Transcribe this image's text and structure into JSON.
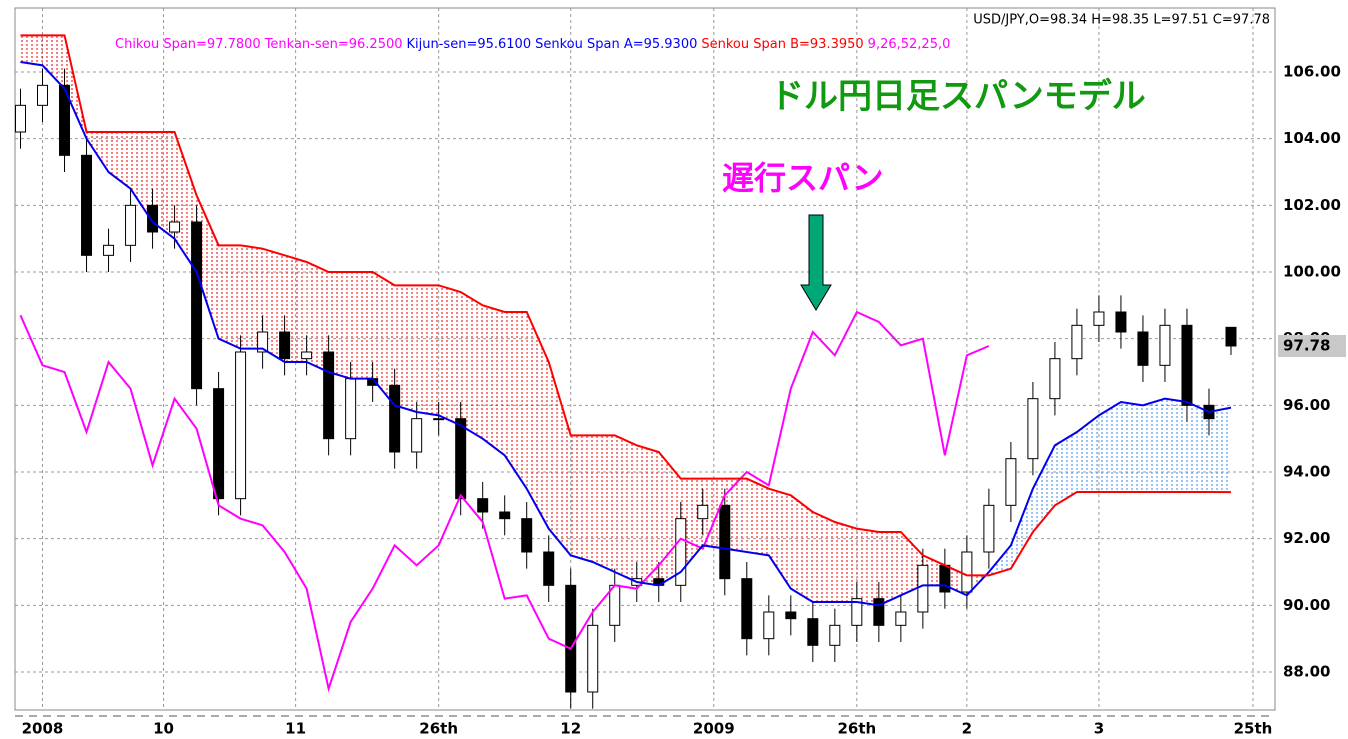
{
  "chart_data": {
    "type": "candlestick",
    "title": "USD/JPY,O=98.34 H=98.35 L=97.51 C=97.78",
    "legend": [
      {
        "label": "Chikou Span=97.7800",
        "color": "#ff00ff"
      },
      {
        "label": "Tenkan-sen=96.2500",
        "color": "#ff00ff"
      },
      {
        "label": "Kijun-sen=95.6100",
        "color": "#0000ff"
      },
      {
        "label": "Senkou Span A=95.9300",
        "color": "#0000ff"
      },
      {
        "label": "Senkou Span B=93.3950",
        "color": "#ff0000"
      },
      {
        "label": "9,26,52,25,0",
        "color": "#ff00ff"
      }
    ],
    "annotations": [
      {
        "text": "ドル円日足スパンモデル",
        "color": "#119911"
      },
      {
        "text": "遅行スパン",
        "color": "#ff00ff"
      }
    ],
    "price_tag": 97.78,
    "x": [
      0,
      1,
      2,
      3,
      4,
      5,
      6,
      7,
      8,
      9,
      10,
      11,
      12,
      13,
      14,
      15,
      16,
      17,
      18,
      19,
      20,
      21,
      22,
      23,
      24,
      25,
      26,
      27,
      28,
      29,
      30,
      31,
      32,
      33,
      34,
      35,
      36,
      37,
      38,
      39,
      40,
      41,
      42,
      43,
      44,
      45,
      46,
      47,
      48,
      49,
      50,
      51,
      52,
      53,
      54,
      55
    ],
    "open": [
      104.2,
      105.0,
      105.6,
      103.5,
      100.5,
      100.8,
      102.0,
      101.2,
      101.5,
      96.5,
      93.2,
      97.6,
      98.2,
      97.4,
      97.6,
      95.0,
      96.8,
      96.6,
      94.6,
      95.6,
      95.6,
      93.2,
      92.8,
      92.6,
      91.6,
      90.6,
      87.4,
      89.4,
      90.6,
      90.8,
      90.6,
      92.6,
      93.0,
      90.8,
      89.0,
      89.8,
      89.6,
      88.8,
      89.4,
      90.2,
      89.4,
      89.8,
      91.2,
      90.4,
      91.6,
      93.0,
      94.4,
      96.2,
      97.4,
      98.4,
      98.8,
      98.2,
      97.2,
      98.4,
      96.0,
      98.34
    ],
    "high": [
      105.5,
      106.1,
      106.1,
      104.0,
      101.3,
      102.5,
      102.5,
      102.0,
      102.0,
      97.0,
      98.1,
      98.7,
      98.7,
      98.1,
      98.1,
      97.3,
      97.3,
      97.1,
      96.1,
      96.1,
      96.1,
      93.7,
      93.3,
      93.1,
      92.1,
      91.1,
      89.9,
      91.1,
      91.3,
      91.3,
      93.1,
      93.5,
      93.5,
      91.3,
      90.3,
      90.3,
      90.1,
      89.9,
      90.7,
      90.7,
      90.3,
      91.7,
      91.7,
      92.1,
      93.5,
      94.9,
      96.7,
      97.9,
      98.9,
      99.3,
      99.3,
      98.7,
      98.9,
      98.9,
      96.5,
      98.35
    ],
    "low": [
      103.7,
      104.5,
      103.0,
      100.0,
      100.0,
      100.3,
      100.7,
      100.7,
      96.0,
      92.7,
      92.7,
      97.1,
      96.9,
      96.9,
      94.5,
      94.5,
      96.1,
      94.1,
      94.1,
      95.1,
      92.7,
      92.3,
      92.1,
      91.1,
      90.1,
      86.9,
      86.9,
      88.9,
      90.1,
      90.1,
      90.1,
      92.1,
      90.3,
      88.5,
      88.5,
      89.1,
      88.3,
      88.3,
      88.9,
      88.9,
      88.9,
      89.3,
      89.9,
      89.9,
      91.1,
      92.5,
      93.9,
      95.7,
      96.9,
      97.9,
      97.7,
      96.7,
      96.7,
      95.5,
      95.1,
      97.51
    ],
    "close": [
      105.0,
      105.6,
      103.5,
      100.5,
      100.8,
      102.0,
      101.2,
      101.5,
      96.5,
      93.2,
      97.6,
      98.2,
      97.4,
      97.6,
      95.0,
      96.8,
      96.6,
      94.6,
      95.6,
      95.6,
      93.2,
      92.8,
      92.6,
      91.6,
      90.6,
      87.4,
      89.4,
      90.6,
      90.8,
      90.6,
      92.6,
      93.0,
      90.8,
      89.0,
      89.8,
      89.6,
      88.8,
      89.4,
      90.2,
      89.4,
      89.8,
      91.2,
      90.4,
      91.6,
      93.0,
      94.4,
      96.2,
      97.4,
      98.4,
      98.8,
      98.2,
      97.2,
      98.4,
      96.0,
      95.6,
      97.78
    ],
    "series": [
      {
        "color": "#ff00ff",
        "values": [
          98.7,
          97.2,
          97.0,
          95.2,
          97.3,
          96.5,
          94.2,
          96.2,
          95.3,
          93.0,
          92.6,
          92.4,
          91.6,
          90.5,
          87.5,
          89.5,
          90.5,
          91.8,
          91.2,
          91.8,
          93.3,
          92.5,
          90.2,
          90.3,
          89.0,
          88.7,
          89.8,
          90.6,
          90.5,
          91.2,
          92.0,
          91.7,
          93.3,
          94.0,
          93.6,
          96.5,
          98.2,
          97.5,
          98.8,
          98.5,
          97.8,
          98.0,
          94.5,
          97.5,
          97.78,
          null,
          null,
          null,
          null,
          null,
          null,
          null,
          null,
          null,
          null,
          null
        ]
      },
      {
        "color": "#0000ee",
        "values": [
          106.3,
          106.2,
          105.5,
          104.0,
          103.0,
          102.5,
          101.5,
          101.0,
          100.0,
          98.0,
          97.7,
          97.7,
          97.3,
          97.3,
          97.0,
          96.8,
          96.8,
          96.0,
          95.8,
          95.7,
          95.4,
          95.0,
          94.5,
          93.5,
          92.3,
          91.5,
          91.3,
          91.0,
          90.7,
          90.6,
          91.0,
          91.8,
          91.7,
          91.6,
          91.5,
          90.5,
          90.1,
          90.1,
          90.1,
          90.0,
          90.3,
          90.6,
          90.6,
          90.3,
          91.0,
          91.8,
          93.5,
          94.8,
          95.2,
          95.7,
          96.1,
          96.0,
          96.2,
          96.1,
          95.8,
          95.93
        ]
      },
      {
        "color": "#ff0000",
        "values": [
          107.1,
          107.1,
          107.1,
          104.2,
          104.2,
          104.2,
          104.2,
          104.2,
          102.3,
          100.8,
          100.8,
          100.7,
          100.5,
          100.3,
          100.0,
          100.0,
          100.0,
          99.6,
          99.6,
          99.6,
          99.4,
          99.0,
          98.8,
          98.8,
          97.3,
          95.1,
          95.1,
          95.1,
          94.8,
          94.6,
          93.8,
          93.8,
          93.8,
          93.8,
          93.5,
          93.3,
          92.8,
          92.5,
          92.3,
          92.2,
          92.2,
          91.5,
          91.2,
          90.9,
          90.9,
          91.1,
          92.2,
          93.0,
          93.4,
          93.4,
          93.4,
          93.4,
          93.4,
          93.4,
          93.4,
          93.395
        ]
      }
    ],
    "xlim": [
      -0.25,
      57
    ],
    "ylim": [
      86.86,
      107.92
    ],
    "xticks": [
      {
        "value": 1,
        "label": "2008"
      },
      {
        "value": 6.5,
        "label": "10"
      },
      {
        "value": 12.5,
        "label": "11"
      },
      {
        "value": 19,
        "label": "26th"
      },
      {
        "value": 25,
        "label": "12"
      },
      {
        "value": 31.5,
        "label": "2009"
      },
      {
        "value": 38,
        "label": "26th"
      },
      {
        "value": 43,
        "label": "2"
      },
      {
        "value": 49,
        "label": "3"
      },
      {
        "value": 56,
        "label": "25th"
      }
    ],
    "yticks": [
      {
        "value": 88,
        "label": "88.00"
      },
      {
        "value": 90,
        "label": "90.00"
      },
      {
        "value": 92,
        "label": "92.00"
      },
      {
        "value": 94,
        "label": "94.00"
      },
      {
        "value": 96,
        "label": "96.00"
      },
      {
        "value": 98,
        "label": "98.00"
      },
      {
        "value": 100,
        "label": "100.00"
      },
      {
        "value": 102,
        "label": "102.00"
      },
      {
        "value": 104,
        "label": "104.00"
      },
      {
        "value": 106,
        "label": "106.00"
      }
    ],
    "grid": true
  }
}
